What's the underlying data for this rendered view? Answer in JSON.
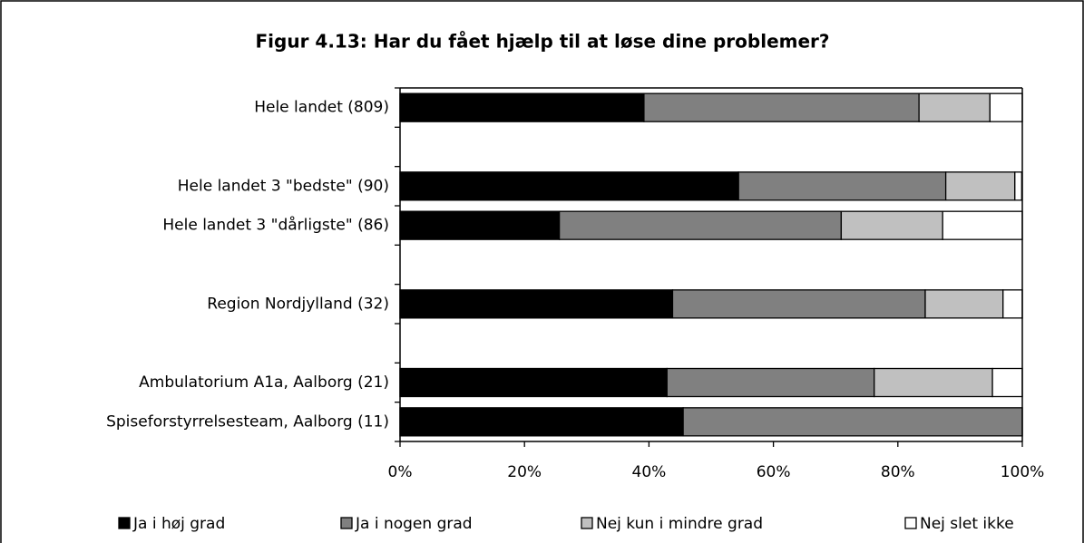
{
  "chart_data": {
    "type": "stacked_barh",
    "title": "Figur 4.13: Har du fået hjælp til at løse dine problemer?",
    "categories": [
      "Hele landet  (809)",
      null,
      "Hele landet 3 \"bedste\" (90)",
      "Hele landet 3 \"dårligste\" (86)",
      null,
      "Region Nordjylland (32)",
      null,
      "Ambulatorium A1a, Aalborg (21)",
      "Spiseforstyrrelsesteam, Aalborg (11)"
    ],
    "series": [
      {
        "name": "Ja i høj grad",
        "color": "#000000",
        "values": [
          39.2,
          null,
          54.4,
          25.6,
          null,
          43.8,
          null,
          42.9,
          45.5
        ]
      },
      {
        "name": "Ja i nogen grad",
        "color": "#808080",
        "values": [
          44.2,
          null,
          33.3,
          45.3,
          null,
          40.6,
          null,
          33.3,
          54.5
        ]
      },
      {
        "name": "Nej kun i mindre grad",
        "color": "#c0c0c0",
        "values": [
          11.4,
          null,
          11.1,
          16.3,
          null,
          12.5,
          null,
          19.0,
          0
        ]
      },
      {
        "name": "Nej slet ikke",
        "color": "#ffffff",
        "values": [
          5.2,
          null,
          1.1,
          12.8,
          null,
          3.1,
          null,
          4.8,
          0
        ]
      }
    ],
    "xlim": [
      0,
      100
    ],
    "xticks": [
      {
        "value": 0,
        "label": "0%"
      },
      {
        "value": 20,
        "label": "20%"
      },
      {
        "value": 40,
        "label": "40%"
      },
      {
        "value": 60,
        "label": "60%"
      },
      {
        "value": 80,
        "label": "80%"
      },
      {
        "value": 100,
        "label": "100%"
      }
    ],
    "legend": "bottom"
  }
}
